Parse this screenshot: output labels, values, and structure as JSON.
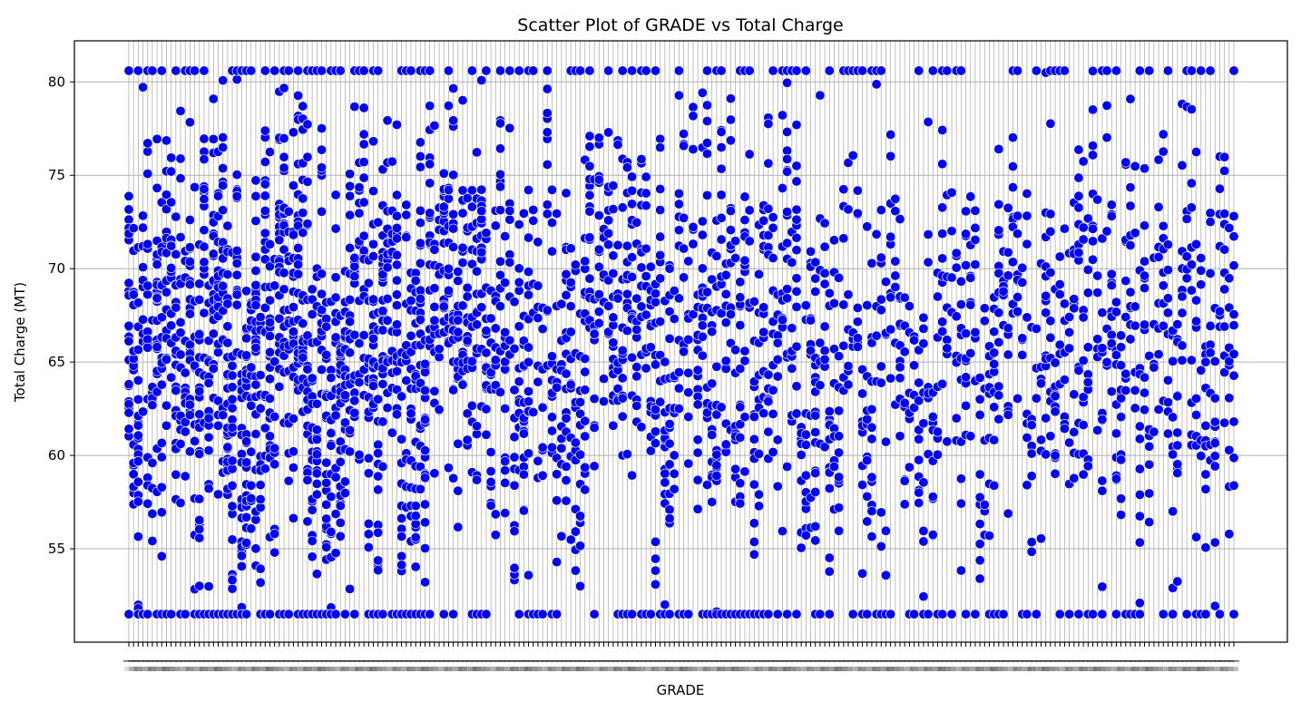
{
  "chart_data": {
    "type": "scatter",
    "title": "Scatter Plot of GRADE vs Total Charge",
    "xlabel": "GRADE",
    "ylabel": "Total Charge (MT)",
    "ylim": [
      50,
      82.2
    ],
    "y_ticks": [
      55,
      60,
      65,
      70,
      75,
      80
    ],
    "x_category_count": 236,
    "x_tick_labels_overlapping": true,
    "grid": true,
    "marker_color": "#0000ff",
    "marker_edge_color": "#ffffff",
    "points_per_category_range": [
      2,
      30
    ],
    "y_value_range": [
      51.5,
      80.6
    ]
  }
}
